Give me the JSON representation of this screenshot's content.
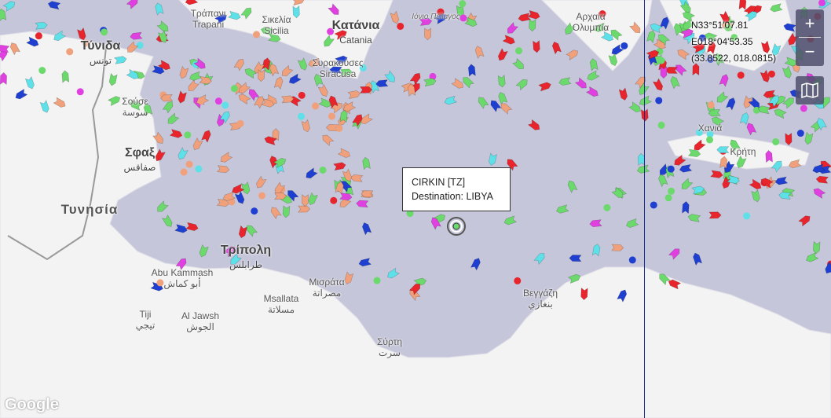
{
  "map": {
    "colors": {
      "sea": "#c6c6da",
      "land": "#f3f3f3",
      "cargo": "#6bd96b",
      "tanker": "#e8242c",
      "passenger": "#1f3fd1",
      "fishing": "#f0a07a",
      "tug": "#5ee0e8",
      "pleasure": "#e040e0"
    },
    "places": [
      {
        "name": "Τύνιδα",
        "sub": "تونس",
        "kind": "big"
      },
      {
        "name": "Σούσε",
        "sub": "سوسة",
        "kind": "small"
      },
      {
        "name": "Σφαξ",
        "sub": "صفاقس",
        "kind": "big"
      },
      {
        "name": "Τυνησία",
        "sub": "",
        "kind": "country"
      },
      {
        "name": "Τράπανι",
        "sub": "Trapani",
        "kind": "small"
      },
      {
        "name": "Σικελία",
        "sub": "Sicilia",
        "kind": "small"
      },
      {
        "name": "Κατάνια",
        "sub": "Catania",
        "kind": "big"
      },
      {
        "name": "Συρακούσες",
        "sub": "Siracusa",
        "kind": "small"
      },
      {
        "name": "Τρίπολη",
        "sub": "طرابلس",
        "kind": "big"
      },
      {
        "name": "Abu Kammash",
        "sub": "أبو كماش",
        "kind": "small"
      },
      {
        "name": "Μισράτα",
        "sub": "مصراتة",
        "kind": "small"
      },
      {
        "name": "Msallata",
        "sub": "مسلاتة",
        "kind": "small"
      },
      {
        "name": "Tiji",
        "sub": "تيجي",
        "kind": "small"
      },
      {
        "name": "Al Jawsh",
        "sub": "الجوش",
        "kind": "small"
      },
      {
        "name": "Σύρτη",
        "sub": "سرت",
        "kind": "small"
      },
      {
        "name": "Βεγγάζη",
        "sub": "بنغازي",
        "kind": "small"
      },
      {
        "name": "Χανιά",
        "sub": "",
        "kind": "small"
      },
      {
        "name": "Κρήτη",
        "sub": "",
        "kind": "small"
      },
      {
        "name": "Αρχαία",
        "sub": "Ολυμπία",
        "kind": "small"
      },
      {
        "name": "Ιόνιο Πέλαγος",
        "sub": "",
        "kind": "sea"
      }
    ]
  },
  "tooltip": {
    "vessel": "CIRKIN [TZ]",
    "destination": "Destination: LIBYA"
  },
  "coordinates": {
    "lat": "N33°51'07.81",
    "lon": "E018°04'53.35",
    "decimal": "(33.8522, 018.0815)"
  },
  "controls": {
    "zoom_in": "+",
    "zoom_out": "−",
    "layers_icon": "map-layers-icon"
  },
  "attribution": "Google"
}
